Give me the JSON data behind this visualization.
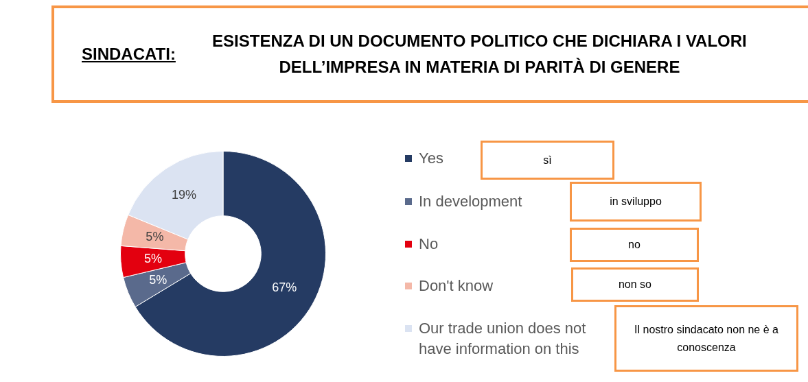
{
  "chart_data": {
    "type": "donut",
    "title": "SINDACATI: ESISTENZA DI UN DOCUMENTO POLITICO CHE DICHIARA I VALORI DELL’IMPRESA IN MATERIA DI PARITÀ DI GENERE",
    "categories": [
      "Yes",
      "In development",
      "No",
      "Don't know",
      "Our trade union does not have information on this"
    ],
    "values": [
      67,
      5,
      5,
      5,
      19
    ],
    "colors": [
      "#253b63",
      "#5a6a8c",
      "#e3000f",
      "#f4b8a8",
      "#dbe3f2"
    ],
    "value_labels": [
      "67%",
      "5%",
      "5%",
      "5%",
      "19%"
    ],
    "legend": "right",
    "annotations": [
      "sì",
      "in sviluppo",
      "no",
      "non so",
      "Il nostro sindacato non ne è a conoscenza"
    ]
  }
}
